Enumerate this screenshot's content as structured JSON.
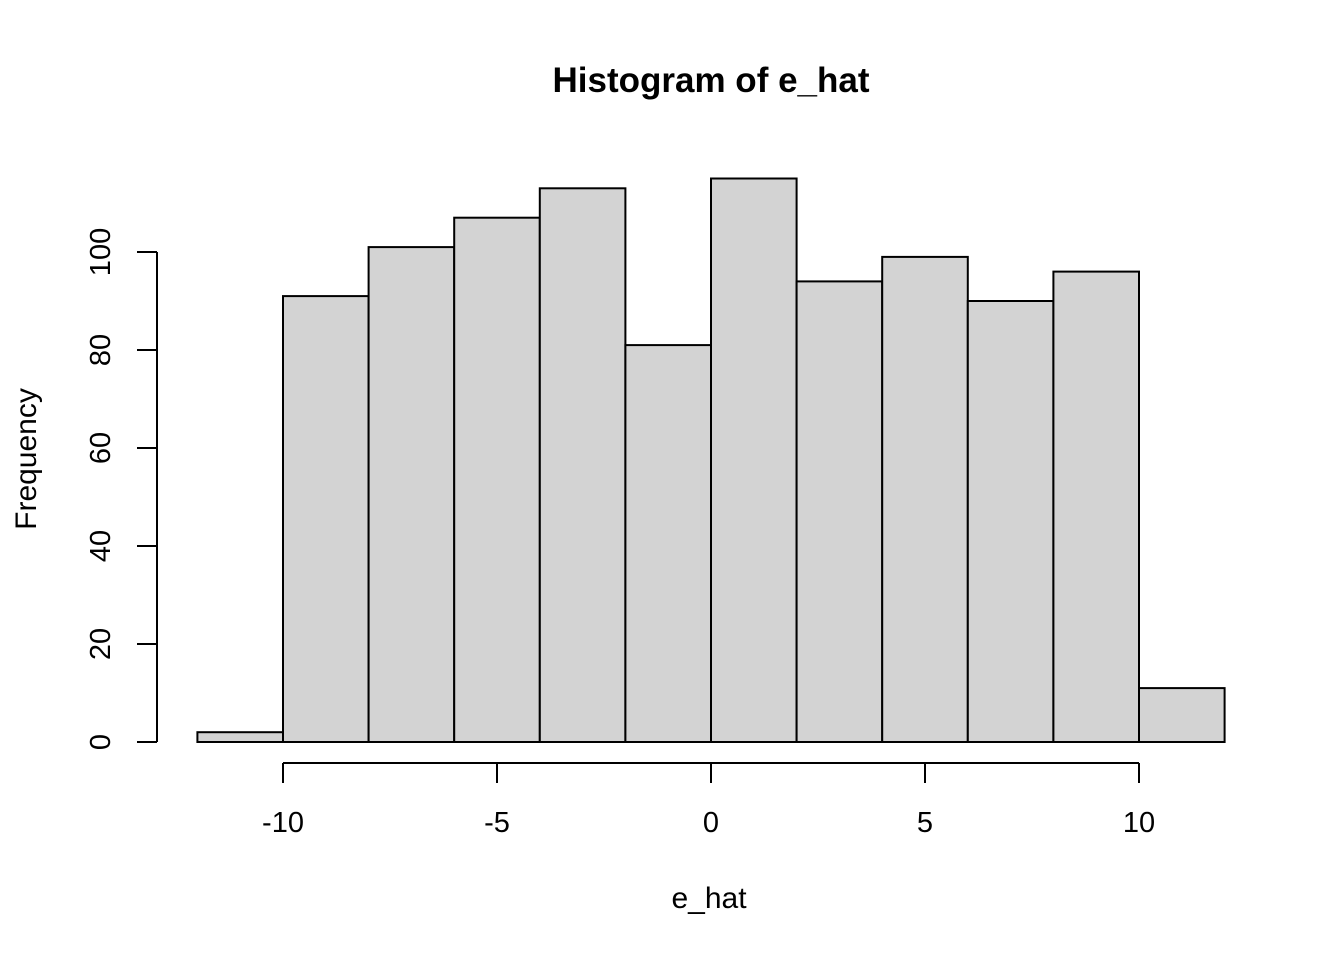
{
  "window": {
    "background_color": "#ffffff",
    "text_color": "#000000"
  },
  "chart_data": {
    "type": "bar",
    "subtype": "histogram",
    "title": "Histogram of e_hat",
    "xlabel": "e_hat",
    "ylabel": "Frequency",
    "bin_breaks": [
      -12,
      -10,
      -8,
      -6,
      -4,
      -2,
      0,
      2,
      4,
      6,
      8,
      10,
      12
    ],
    "counts": [
      2,
      91,
      101,
      107,
      113,
      81,
      115,
      94,
      99,
      90,
      96,
      11
    ],
    "x_ticks": [
      -10,
      -5,
      0,
      5,
      10
    ],
    "y_ticks": [
      0,
      20,
      40,
      60,
      80,
      100
    ],
    "xlim": [
      -12,
      12
    ],
    "ylim": [
      0,
      116
    ],
    "y_axis_tick_range": [
      0,
      100
    ],
    "grid": false,
    "legend_position": "none",
    "bar_fill": "#d3d3d3",
    "bar_stroke": "#000000",
    "axis_color": "#000000"
  }
}
